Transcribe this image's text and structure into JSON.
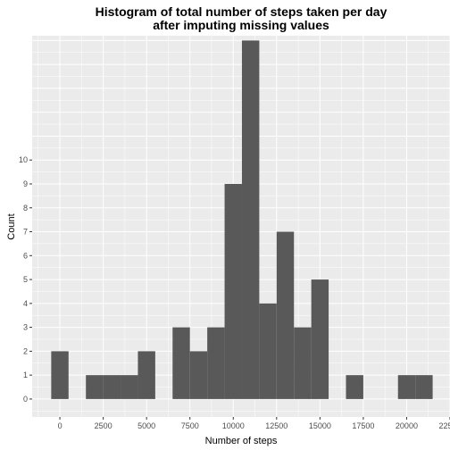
{
  "chart_data": {
    "type": "bar",
    "title_lines": [
      "Histogram of total number of steps taken per day",
      "after imputing missing values"
    ],
    "xlabel": "Number of steps",
    "ylabel": "Count",
    "bin_width": 1000,
    "x_ticks": [
      0,
      2500,
      5000,
      7500,
      10000,
      12500,
      15000,
      17500,
      20000,
      22500
    ],
    "x_tick_labels": [
      "0",
      "2500",
      "5000",
      "7500",
      "10000",
      "12500",
      "15000",
      "17500",
      "20000",
      "22500"
    ],
    "y_ticks": [
      0,
      1,
      2,
      3,
      4,
      5,
      6,
      7,
      8,
      9,
      10
    ],
    "y_tick_labels": [
      "0",
      "1",
      "2",
      "3",
      "4",
      "5",
      "6",
      "7",
      "8",
      "9",
      "10"
    ],
    "bins": [
      {
        "start": -500,
        "count": 2
      },
      {
        "start": 500,
        "count": 0
      },
      {
        "start": 1500,
        "count": 1
      },
      {
        "start": 2500,
        "count": 1
      },
      {
        "start": 3500,
        "count": 1
      },
      {
        "start": 4500,
        "count": 2
      },
      {
        "start": 5500,
        "count": 0
      },
      {
        "start": 6500,
        "count": 3
      },
      {
        "start": 7500,
        "count": 2
      },
      {
        "start": 8500,
        "count": 3
      },
      {
        "start": 9500,
        "count": 9
      },
      {
        "start": 10500,
        "count": 15
      },
      {
        "start": 11500,
        "count": 4
      },
      {
        "start": 12500,
        "count": 7
      },
      {
        "start": 13500,
        "count": 3
      },
      {
        "start": 14500,
        "count": 5
      },
      {
        "start": 15500,
        "count": 0
      },
      {
        "start": 16500,
        "count": 1
      },
      {
        "start": 17500,
        "count": 0
      },
      {
        "start": 18500,
        "count": 0
      },
      {
        "start": 19500,
        "count": 1
      },
      {
        "start": 20500,
        "count": 1
      }
    ],
    "xlim": [
      -1600,
      22500
    ],
    "ylim": [
      -0.75,
      15.2
    ],
    "colors": {
      "panel": "#ebebeb",
      "grid": "#ffffff",
      "bar": "#595959"
    },
    "grid": true
  }
}
